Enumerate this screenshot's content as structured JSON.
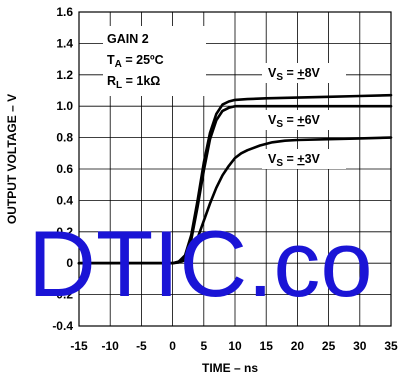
{
  "chart_data": {
    "type": "line",
    "xlabel": "TIME – ns",
    "ylabel": "OUTPUT VOLTAGE – V",
    "xlim": [
      -15,
      35
    ],
    "ylim": [
      -0.4,
      1.6
    ],
    "x_ticks": [
      "-15",
      "-10",
      "-5",
      "0",
      "5",
      "10",
      "15",
      "20",
      "25",
      "30",
      "35"
    ],
    "y_ticks": [
      "1.6",
      "1.4",
      "1.2",
      "1.0",
      "0.8",
      "0.6",
      "0.4",
      "0.2",
      "0",
      "-0.2",
      "-0.4"
    ],
    "grid": true,
    "annotations": {
      "gain": "GAIN 2",
      "ta_main": "T",
      "ta_sub": "A",
      "ta_rest": " = 25ºC",
      "rl_main": "R",
      "rl_sub": "L",
      "rl_rest": " = 1kΩ"
    },
    "series": [
      {
        "name_main": "V",
        "name_sub": "S",
        "name_eq": " = ",
        "name_pm": "+",
        "name_val": "8V",
        "x": [
          -15,
          0,
          1,
          2,
          3,
          4,
          5,
          6,
          7,
          8,
          9,
          10,
          12,
          15,
          20,
          25,
          30,
          35
        ],
        "y": [
          0,
          0,
          0.01,
          0.05,
          0.18,
          0.4,
          0.64,
          0.83,
          0.95,
          1.01,
          1.03,
          1.04,
          1.045,
          1.05,
          1.055,
          1.06,
          1.065,
          1.07
        ]
      },
      {
        "name_main": "V",
        "name_sub": "S",
        "name_eq": " = ",
        "name_pm": "+",
        "name_val": "6V",
        "x": [
          -15,
          0,
          1,
          2,
          3,
          4,
          5,
          6,
          7,
          8,
          9,
          10,
          12,
          15,
          20,
          25,
          30,
          35
        ],
        "y": [
          0,
          0,
          0.01,
          0.04,
          0.15,
          0.36,
          0.59,
          0.79,
          0.91,
          0.97,
          0.99,
          1.0,
          1.0,
          1.0,
          1.0,
          1.0,
          1.0,
          1.0
        ]
      },
      {
        "name_main": "V",
        "name_sub": "S",
        "name_eq": " = ",
        "name_pm": "+",
        "name_val": "3V",
        "x": [
          -15,
          0,
          1,
          2,
          3,
          4,
          5,
          6,
          7,
          8,
          9,
          10,
          11,
          12,
          14,
          16,
          18,
          20,
          25,
          30,
          35
        ],
        "y": [
          0,
          0,
          0.005,
          0.02,
          0.07,
          0.16,
          0.27,
          0.38,
          0.48,
          0.56,
          0.62,
          0.67,
          0.7,
          0.72,
          0.75,
          0.77,
          0.78,
          0.785,
          0.79,
          0.795,
          0.8
        ]
      }
    ],
    "watermark": "DTIC.co"
  }
}
